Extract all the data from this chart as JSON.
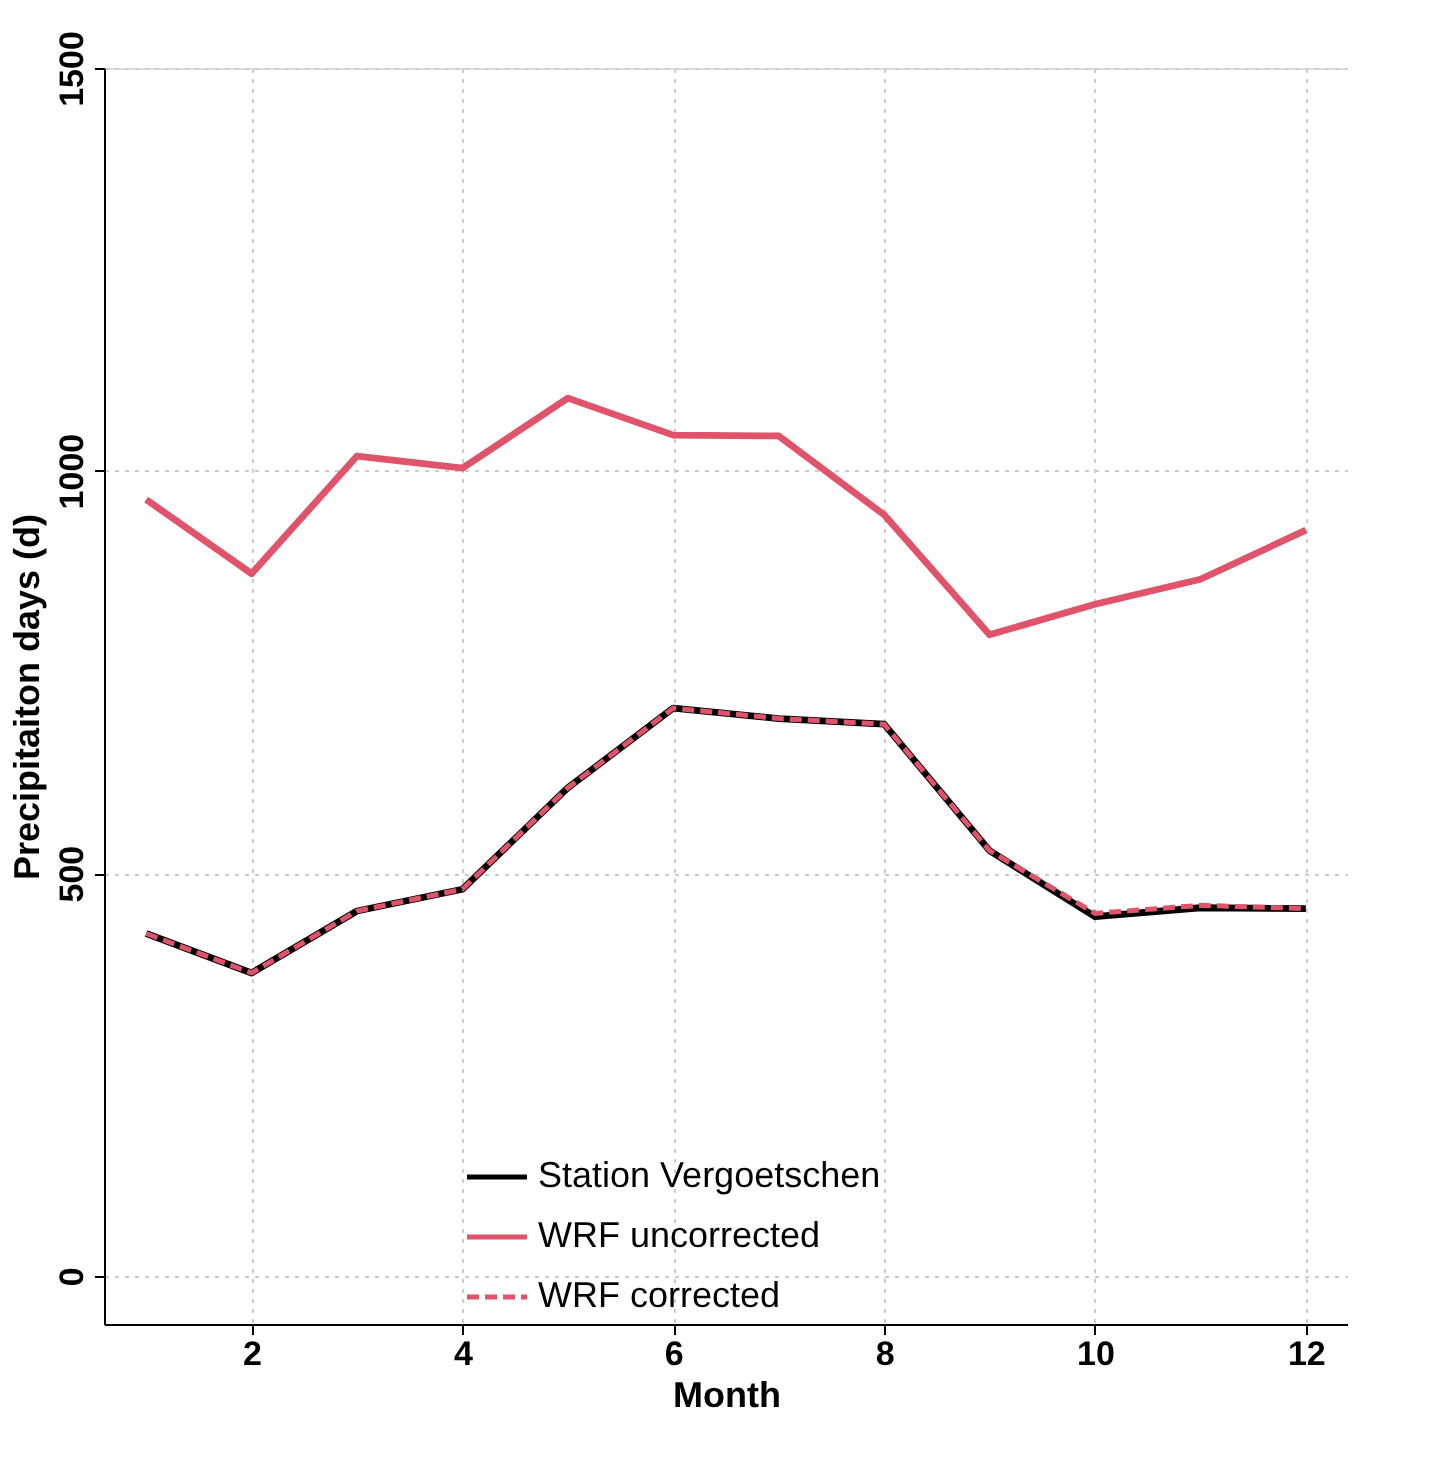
{
  "chart_data": {
    "type": "line",
    "xlabel": "Month",
    "ylabel": "Precipitaiton days (d)",
    "x": [
      1,
      2,
      3,
      4,
      5,
      6,
      7,
      8,
      9,
      10,
      11,
      12
    ],
    "xlim": [
      0.6,
      12.4
    ],
    "xticks": [
      2,
      4,
      6,
      8,
      10,
      12
    ],
    "ylim": [
      -60,
      1500
    ],
    "yticks": [
      0,
      500,
      1000,
      1500
    ],
    "grid": true,
    "legend": "bottom",
    "series": [
      {
        "name": "Station Vergoetschen",
        "color": "#000000",
        "line_style": "solid",
        "values": [
          425,
          376,
          453,
          480,
          606,
          705,
          692,
          685,
          528,
          446,
          457,
          456
        ]
      },
      {
        "name": "WRF uncorrected",
        "color": "#df536b",
        "line_style": "solid",
        "values": [
          964,
          872,
          1018,
          1003,
          1090,
          1044,
          1043,
          945,
          796,
          834,
          865,
          926
        ]
      },
      {
        "name": "WRF corrected",
        "color": "#df536b",
        "line_style": "dashed",
        "values": [
          425,
          376,
          453,
          480,
          606,
          705,
          692,
          685,
          528,
          450,
          460,
          456
        ]
      }
    ]
  }
}
